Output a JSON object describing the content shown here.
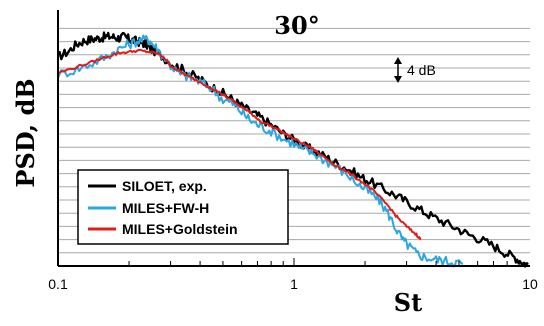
{
  "chart_data": {
    "type": "line",
    "title": "30°",
    "xlabel": "St",
    "ylabel": "PSD, dB",
    "x_scale": "log",
    "xlim": [
      0.1,
      10
    ],
    "ylim": [
      0,
      10
    ],
    "x_ticks": [
      "0.1",
      "1",
      "10"
    ],
    "grid": "horizontal",
    "annotation": "4 dB",
    "legend_position": "lower-left",
    "series": [
      {
        "name": "SILOET, exp.",
        "color": "#000000",
        "x": [
          0.1,
          0.11,
          0.12,
          0.13,
          0.14,
          0.15,
          0.16,
          0.17,
          0.18,
          0.19,
          0.2,
          0.21,
          0.22,
          0.23,
          0.24,
          0.25,
          0.27,
          0.3,
          0.33,
          0.36,
          0.4,
          0.45,
          0.5,
          0.55,
          0.6,
          0.66,
          0.72,
          0.8,
          0.9,
          1.0,
          1.1,
          1.2,
          1.35,
          1.5,
          1.7,
          1.9,
          2.1,
          2.4,
          2.7,
          3.0,
          3.4,
          3.8,
          4.3,
          4.9,
          5.5,
          6.2,
          7.0,
          7.8,
          8.6,
          9.3,
          9.8
        ],
        "y": [
          8.3,
          8.5,
          8.8,
          8.95,
          9.0,
          9.05,
          9.1,
          9.1,
          9.05,
          9.1,
          9.0,
          8.95,
          8.9,
          8.85,
          8.75,
          8.6,
          8.4,
          8.05,
          7.85,
          7.65,
          7.4,
          7.1,
          6.85,
          6.6,
          6.35,
          6.1,
          5.9,
          5.6,
          5.25,
          5.0,
          4.75,
          4.6,
          4.35,
          4.1,
          3.85,
          3.55,
          3.35,
          3.05,
          2.8,
          2.55,
          2.25,
          2.0,
          1.75,
          1.5,
          1.25,
          1.05,
          0.8,
          0.55,
          0.35,
          0.15,
          0.05
        ]
      },
      {
        "name": "MILES+FW-H",
        "color": "#2aa7e0",
        "x": [
          0.1,
          0.12,
          0.14,
          0.16,
          0.18,
          0.2,
          0.22,
          0.24,
          0.25,
          0.27,
          0.3,
          0.33,
          0.36,
          0.4,
          0.45,
          0.5,
          0.55,
          0.6,
          0.66,
          0.72,
          0.8,
          0.9,
          1.0,
          1.1,
          1.2,
          1.35,
          1.5,
          1.7,
          1.9,
          2.1,
          2.3,
          2.5,
          2.7,
          2.9,
          3.1,
          3.3,
          3.6,
          4.0,
          4.4,
          4.8,
          5.2
        ],
        "y": [
          7.6,
          7.8,
          8.05,
          8.3,
          8.6,
          8.8,
          8.95,
          9.0,
          8.85,
          8.5,
          7.95,
          7.6,
          7.5,
          7.3,
          7.05,
          6.6,
          6.45,
          6.1,
          5.75,
          5.55,
          5.35,
          5.05,
          4.85,
          4.6,
          4.5,
          4.2,
          3.95,
          3.6,
          3.2,
          2.9,
          2.6,
          2.1,
          1.5,
          1.0,
          0.75,
          0.5,
          0.35,
          0.25,
          0.2,
          0.15,
          0.1
        ]
      },
      {
        "name": "MILES+Goldstein",
        "color": "#e21b1b",
        "x": [
          0.1,
          0.12,
          0.14,
          0.16,
          0.18,
          0.2,
          0.22,
          0.24,
          0.26,
          0.28,
          0.3,
          0.33,
          0.36,
          0.4,
          0.45,
          0.5,
          0.55,
          0.6,
          0.66,
          0.72,
          0.8,
          0.9,
          1.0,
          1.1,
          1.2,
          1.35,
          1.5,
          1.7,
          1.9,
          2.1,
          2.3,
          2.5,
          2.7,
          2.9,
          3.1,
          3.3,
          3.45
        ],
        "y": [
          7.65,
          7.9,
          8.1,
          8.3,
          8.45,
          8.5,
          8.55,
          8.5,
          8.45,
          8.3,
          7.95,
          7.7,
          7.5,
          7.3,
          7.05,
          6.8,
          6.55,
          6.3,
          6.05,
          5.75,
          5.55,
          5.3,
          5.05,
          4.85,
          4.65,
          4.3,
          4.0,
          3.7,
          3.4,
          3.1,
          2.75,
          2.4,
          2.0,
          1.7,
          1.45,
          1.25,
          1.05
        ]
      }
    ]
  }
}
